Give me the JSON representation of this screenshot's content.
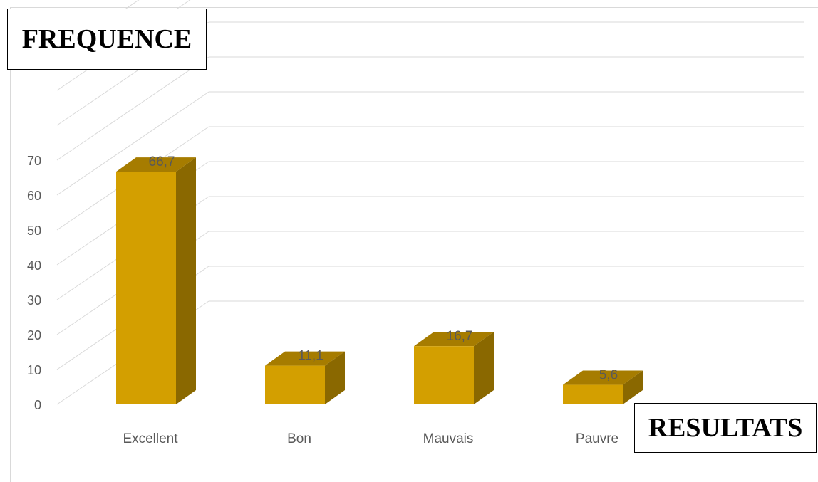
{
  "chart_data": {
    "type": "bar",
    "categories": [
      "Excellent",
      "Bon",
      "Mauvais",
      "Pauvre"
    ],
    "values": [
      66.7,
      11.1,
      16.7,
      5.6
    ],
    "value_labels": [
      "66,7",
      "11,1",
      "16,7",
      "5,6"
    ],
    "y_ticks": [
      "0",
      "10",
      "20",
      "30",
      "40",
      "50",
      "60",
      "70"
    ],
    "ylim": [
      0,
      70
    ],
    "grid": true,
    "style": "3d-column",
    "ylabel": "FREQUENCE",
    "xlabel": "RESULTATS",
    "colors": {
      "front": "#D39F00",
      "top": "#A67C00",
      "side": "#8A6800",
      "grid": "#d9d9d9",
      "text": "#595959"
    }
  }
}
